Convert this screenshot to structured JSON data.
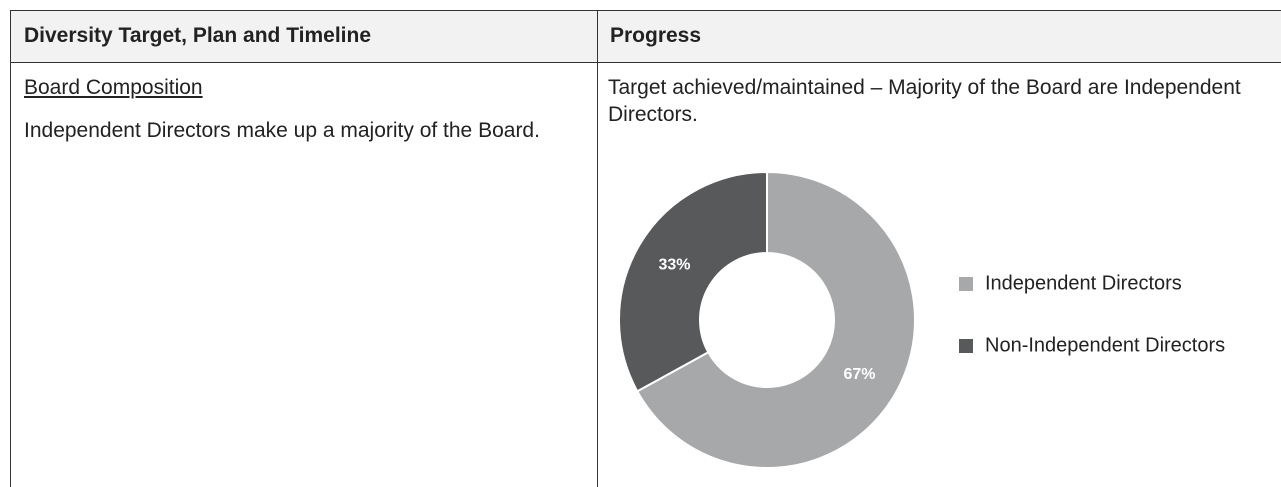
{
  "table": {
    "header": [
      "Diversity Target, Plan and Timeline",
      "Progress"
    ],
    "rows": [
      {
        "heading": "Board Composition",
        "target": "Independent Directors make up a majority of the Board.",
        "progress": "Target achieved/maintained – Majority of the Board are Independent Directors."
      }
    ]
  },
  "chart_data": {
    "type": "pie",
    "donut": true,
    "categories": [
      "Independent Directors",
      "Non-Independent Directors"
    ],
    "values": [
      67,
      33
    ],
    "value_labels": [
      "67%",
      "33%"
    ],
    "colors": [
      "#a7a8aa",
      "#58595b"
    ]
  }
}
